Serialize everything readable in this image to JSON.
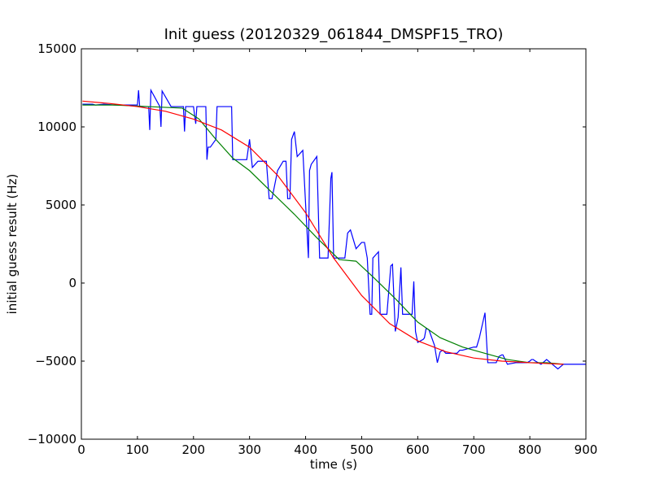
{
  "chart_data": {
    "type": "line",
    "title": "Init guess (20120329_061844_DMSPF15_TRO)",
    "xlabel": "time (s)",
    "ylabel": "initial guess result (Hz)",
    "xlim": [
      0,
      900
    ],
    "ylim": [
      -10000,
      15000
    ],
    "xticks": [
      0,
      100,
      200,
      300,
      400,
      500,
      600,
      700,
      800,
      900
    ],
    "yticks": [
      -10000,
      -5000,
      0,
      5000,
      10000,
      15000
    ],
    "xtick_labels": [
      "0",
      "100",
      "200",
      "300",
      "400",
      "500",
      "600",
      "700",
      "800",
      "900"
    ],
    "ytick_labels": [
      "−10000",
      "−5000",
      "0",
      "5000",
      "10000",
      "15000"
    ],
    "grid": false,
    "legend": "none",
    "series": [
      {
        "color": "#0000ff",
        "x": [
          2,
          20,
          25,
          40,
          60,
          80,
          100,
          102,
          104,
          120,
          122,
          124,
          140,
          142,
          144,
          160,
          175,
          182,
          184,
          186,
          200,
          204,
          206,
          210,
          222,
          224,
          226,
          230,
          240,
          242,
          268,
          270,
          272,
          295,
          300,
          305,
          315,
          330,
          335,
          340,
          350,
          360,
          365,
          368,
          372,
          375,
          380,
          385,
          395,
          405,
          407,
          410,
          420,
          425,
          428,
          430,
          440,
          445,
          447,
          450,
          460,
          470,
          475,
          480,
          490,
          500,
          505,
          510,
          515,
          518,
          520,
          530,
          533,
          537,
          545,
          552,
          555,
          560,
          565,
          570,
          573,
          575,
          580,
          585,
          590,
          593,
          596,
          600,
          610,
          612,
          615,
          620,
          630,
          635,
          640,
          645,
          650,
          660,
          670,
          675,
          680,
          700,
          705,
          710,
          720,
          725,
          730,
          732,
          735,
          740,
          745,
          750,
          752,
          760,
          775,
          780,
          790,
          795,
          800,
          803,
          806,
          810,
          820,
          830,
          850,
          860,
          870,
          875,
          880,
          885,
          890,
          895,
          900
        ],
        "y": [
          11450,
          11450,
          11400,
          11450,
          11400,
          11400,
          11400,
          12350,
          11300,
          11300,
          9800,
          12350,
          11300,
          10000,
          12300,
          11300,
          11300,
          11300,
          9700,
          11300,
          11300,
          10200,
          11300,
          11300,
          11300,
          7900,
          8700,
          8700,
          9200,
          11300,
          11300,
          7900,
          7900,
          7900,
          9200,
          7400,
          7800,
          7800,
          5400,
          5400,
          7200,
          7800,
          7800,
          5400,
          5400,
          9200,
          9700,
          8100,
          8500,
          1600,
          7200,
          7600,
          8100,
          1600,
          1600,
          1600,
          1600,
          6700,
          7100,
          1600,
          1600,
          1600,
          3200,
          3400,
          2200,
          2600,
          2600,
          1600,
          -2000,
          -2000,
          1600,
          2000,
          -2000,
          -2000,
          -2000,
          1100,
          1200,
          -3100,
          -2200,
          1000,
          -2000,
          -2000,
          -2000,
          -2000,
          -2000,
          100,
          -3100,
          -3800,
          -3600,
          -3500,
          -2900,
          -3000,
          -4000,
          -5100,
          -4400,
          -4300,
          -4500,
          -4500,
          -4500,
          -4300,
          -4300,
          -4100,
          -4100,
          -3500,
          -1900,
          -5100,
          -5100,
          -5100,
          -5100,
          -5100,
          -4700,
          -4600,
          -4600,
          -5200,
          -5100,
          -5100,
          -5100,
          -5100,
          -5000,
          -4900,
          -4900,
          -5000,
          -5200,
          -4900,
          -5500,
          -5200,
          -5200,
          -5200,
          -5200,
          -5200,
          -5200,
          -5200,
          -5200
        ]
      },
      {
        "color": "#008000",
        "x": [
          2,
          60,
          120,
          180,
          210,
          240,
          270,
          300,
          340,
          380,
          420,
          460,
          490,
          520,
          560,
          600,
          640,
          680,
          720,
          760,
          800,
          830,
          860
        ],
        "y": [
          11400,
          11400,
          11300,
          11200,
          10500,
          9200,
          8000,
          7200,
          5800,
          4400,
          2900,
          1500,
          1400,
          400,
          -1000,
          -2500,
          -3500,
          -4100,
          -4500,
          -4900,
          -5100,
          -5100,
          -5200
        ]
      },
      {
        "color": "#ff0000",
        "x": [
          2,
          50,
          100,
          150,
          200,
          250,
          300,
          350,
          400,
          450,
          500,
          550,
          600,
          650,
          700,
          750,
          800,
          860
        ],
        "y": [
          11650,
          11500,
          11300,
          11000,
          10500,
          9800,
          8700,
          6900,
          4500,
          1600,
          -800,
          -2600,
          -3700,
          -4400,
          -4800,
          -5000,
          -5100,
          -5200
        ]
      }
    ]
  }
}
